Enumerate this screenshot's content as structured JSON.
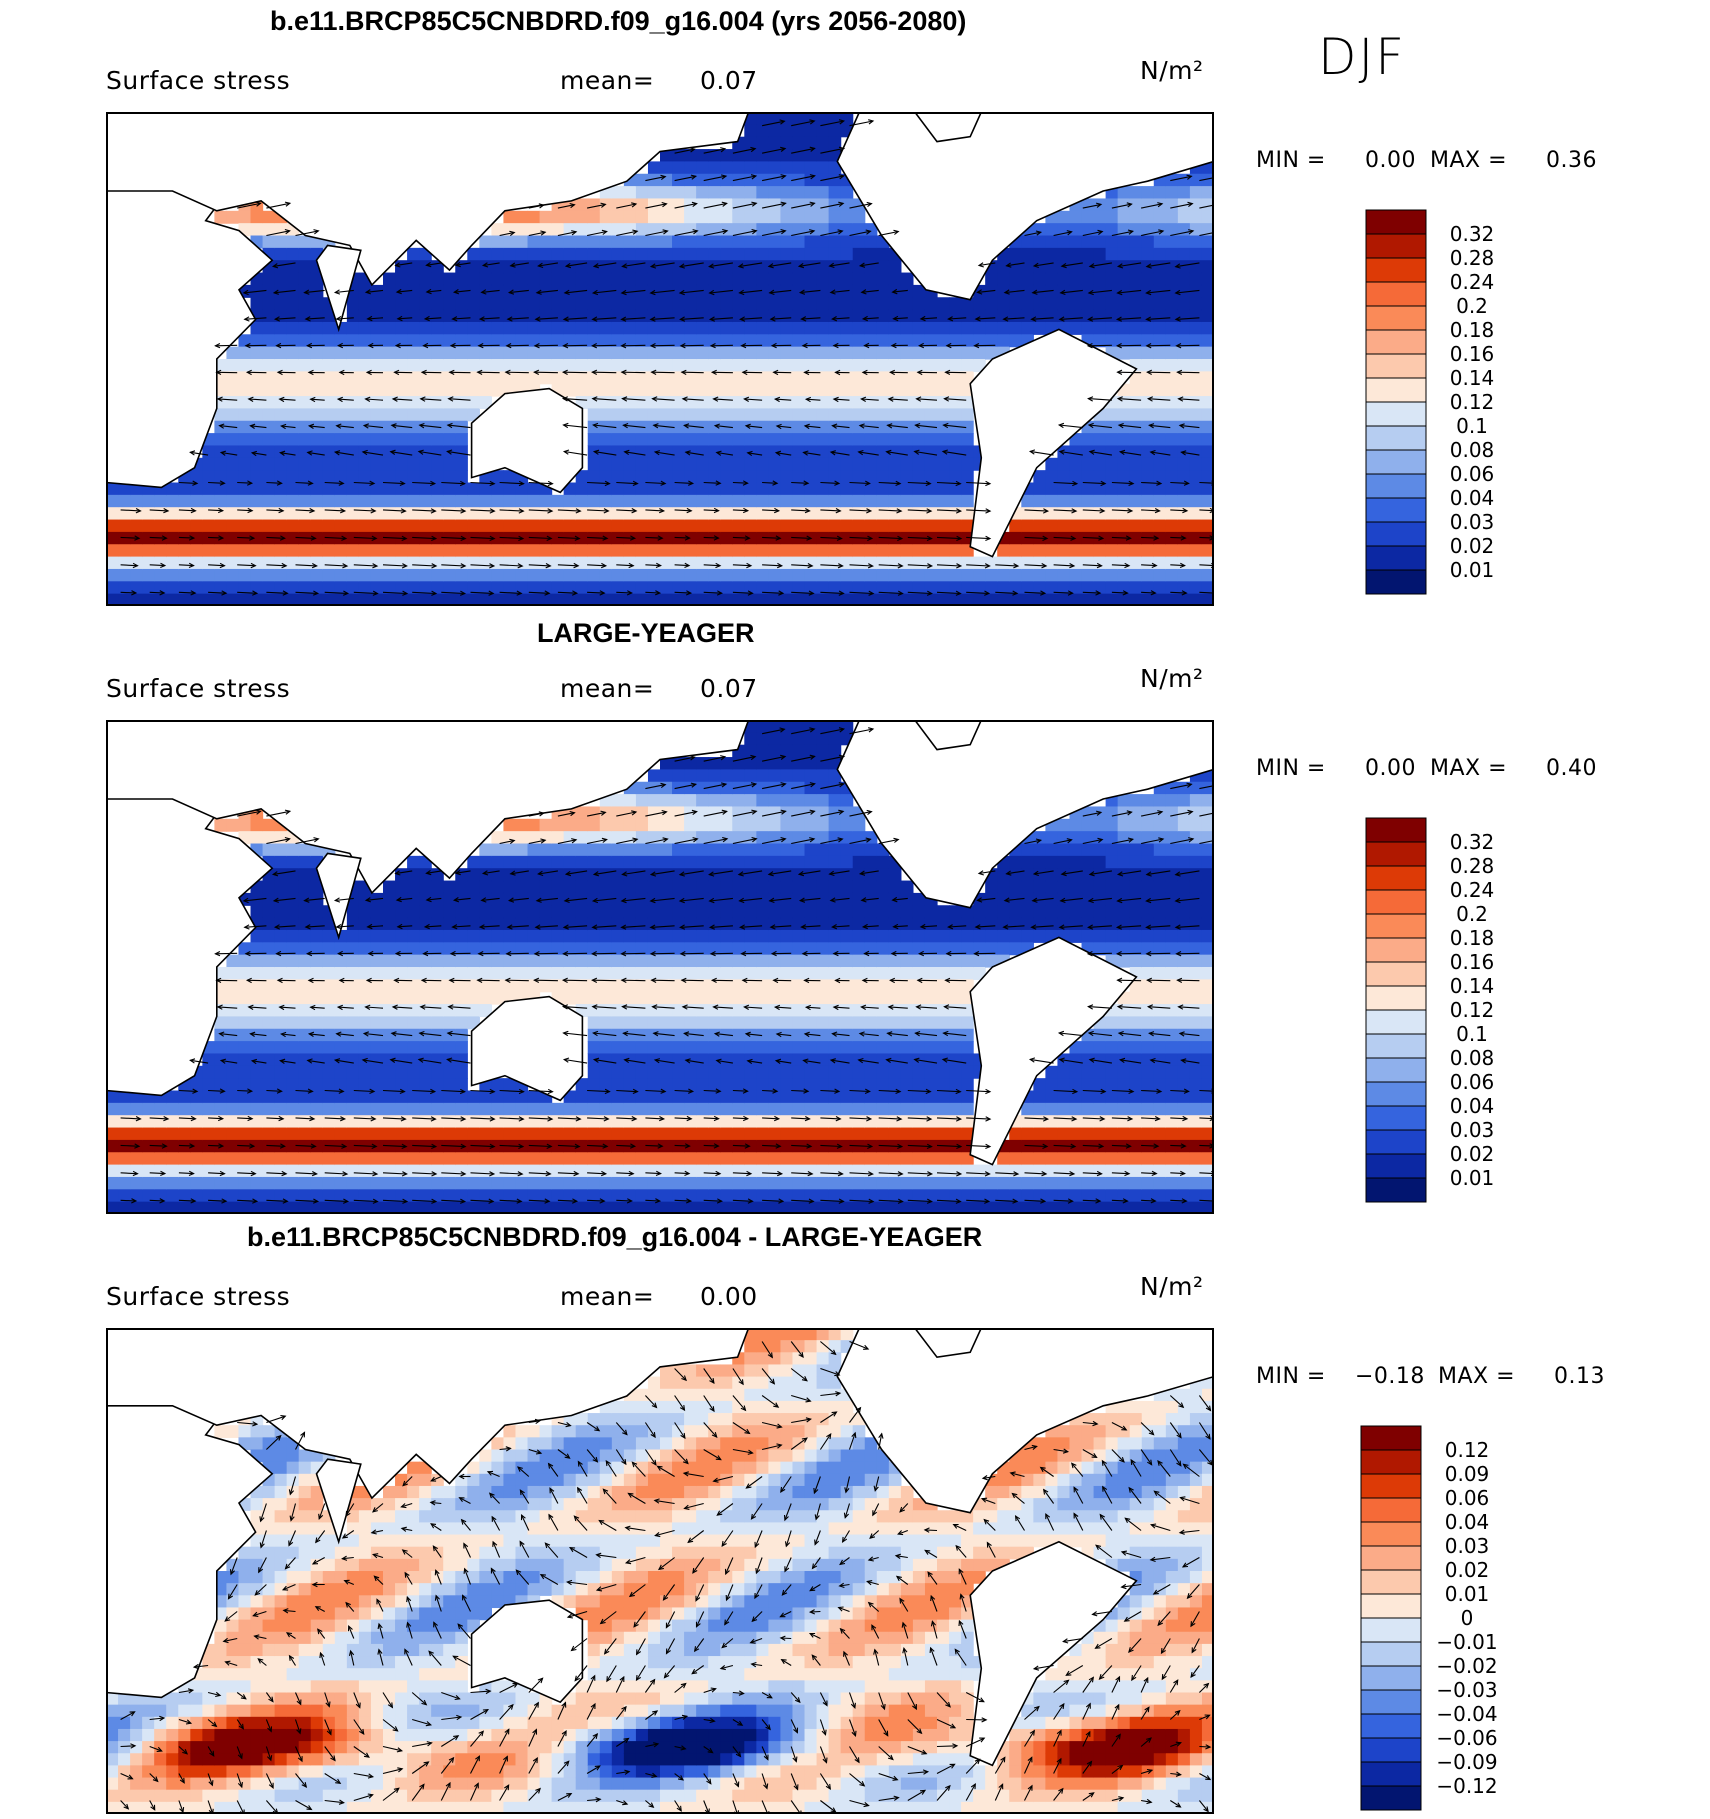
{
  "figure": {
    "season": "DJF",
    "units": "N/m²"
  },
  "panels": [
    {
      "title": "b.e11.BRCP85C5CNBDRD.f09_g16.004 (yrs 2056-2080)",
      "variable": "Surface stress",
      "mean_label": "mean=",
      "mean_value": "0.07",
      "units": "N/m²",
      "min_label": "MIN =",
      "min_value": "0.00",
      "max_label": "MAX =",
      "max_value": "0.36",
      "colorbar": {
        "levels": [
          "0.32",
          "0.28",
          "0.24",
          "0.2",
          "0.18",
          "0.16",
          "0.14",
          "0.12",
          "0.1",
          "0.08",
          "0.06",
          "0.04",
          "0.03",
          "0.02",
          "0.01"
        ],
        "colors": [
          "#7f0000",
          "#b01800",
          "#dd3a06",
          "#f56a38",
          "#fa8a58",
          "#fbab88",
          "#fcc9ad",
          "#fde8d8",
          "#d9e6f6",
          "#b6cdf1",
          "#8fb0ec",
          "#5d8ae5",
          "#3564de",
          "#1d44c9",
          "#0c28a3",
          "#021570"
        ]
      }
    },
    {
      "title": "LARGE-YEAGER",
      "variable": "Surface stress",
      "mean_label": "mean=",
      "mean_value": "0.07",
      "units": "N/m²",
      "min_label": "MIN =",
      "min_value": "0.00",
      "max_label": "MAX =",
      "max_value": "0.40",
      "colorbar": {
        "levels": [
          "0.32",
          "0.28",
          "0.24",
          "0.2",
          "0.18",
          "0.16",
          "0.14",
          "0.12",
          "0.1",
          "0.08",
          "0.06",
          "0.04",
          "0.03",
          "0.02",
          "0.01"
        ],
        "colors": [
          "#7f0000",
          "#b01800",
          "#dd3a06",
          "#f56a38",
          "#fa8a58",
          "#fbab88",
          "#fcc9ad",
          "#fde8d8",
          "#d9e6f6",
          "#b6cdf1",
          "#8fb0ec",
          "#5d8ae5",
          "#3564de",
          "#1d44c9",
          "#0c28a3",
          "#021570"
        ]
      }
    },
    {
      "title": "b.e11.BRCP85C5CNBDRD.f09_g16.004 - LARGE-YEAGER",
      "variable": "Surface stress",
      "mean_label": "mean=",
      "mean_value": "0.00",
      "units": "N/m²",
      "min_label": "MIN =",
      "min_value": "−0.18",
      "max_label": "MAX =",
      "max_value": "0.13",
      "colorbar": {
        "levels": [
          "0.12",
          "0.09",
          "0.06",
          "0.04",
          "0.03",
          "0.02",
          "0.01",
          "0",
          "−0.01",
          "−0.02",
          "−0.03",
          "−0.04",
          "−0.06",
          "−0.09",
          "−0.12"
        ],
        "colors": [
          "#7f0000",
          "#b01800",
          "#dd3a06",
          "#f56a38",
          "#fa8a58",
          "#fbab88",
          "#fcc9ad",
          "#fde8d8",
          "#d9e6f6",
          "#b6cdf1",
          "#8fb0ec",
          "#5d8ae5",
          "#3564de",
          "#1d44c9",
          "#0c28a3",
          "#021570"
        ]
      }
    }
  ]
}
